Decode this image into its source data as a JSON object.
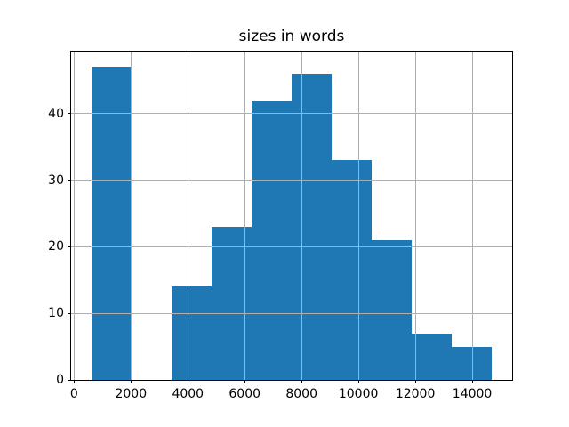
{
  "title": "sizes in words",
  "chart_data": {
    "type": "bar",
    "subtype": "histogram",
    "title": "sizes in words",
    "xlabel": "",
    "ylabel": "",
    "bin_edges": [
      600,
      2010,
      3420,
      4830,
      6240,
      7650,
      9060,
      10470,
      11880,
      13290,
      14700
    ],
    "values": [
      47,
      0,
      14,
      23,
      42,
      46,
      33,
      21,
      7,
      5
    ],
    "xlim": [
      -105,
      15405
    ],
    "ylim": [
      0,
      49.35
    ],
    "xticks": [
      0,
      2000,
      4000,
      6000,
      8000,
      10000,
      12000,
      14000
    ],
    "xtick_labels": [
      "0",
      "2000",
      "4000",
      "6000",
      "8000",
      "10000",
      "12000",
      "14000"
    ],
    "yticks": [
      0,
      10,
      20,
      30,
      40
    ],
    "ytick_labels": [
      "0",
      "10",
      "20",
      "30",
      "40"
    ],
    "grid": true,
    "legend": false,
    "bar_color": "#1f77b4",
    "grid_color": "#b0b0b0",
    "spine_color": "#000000",
    "background_color": "#ffffff"
  }
}
